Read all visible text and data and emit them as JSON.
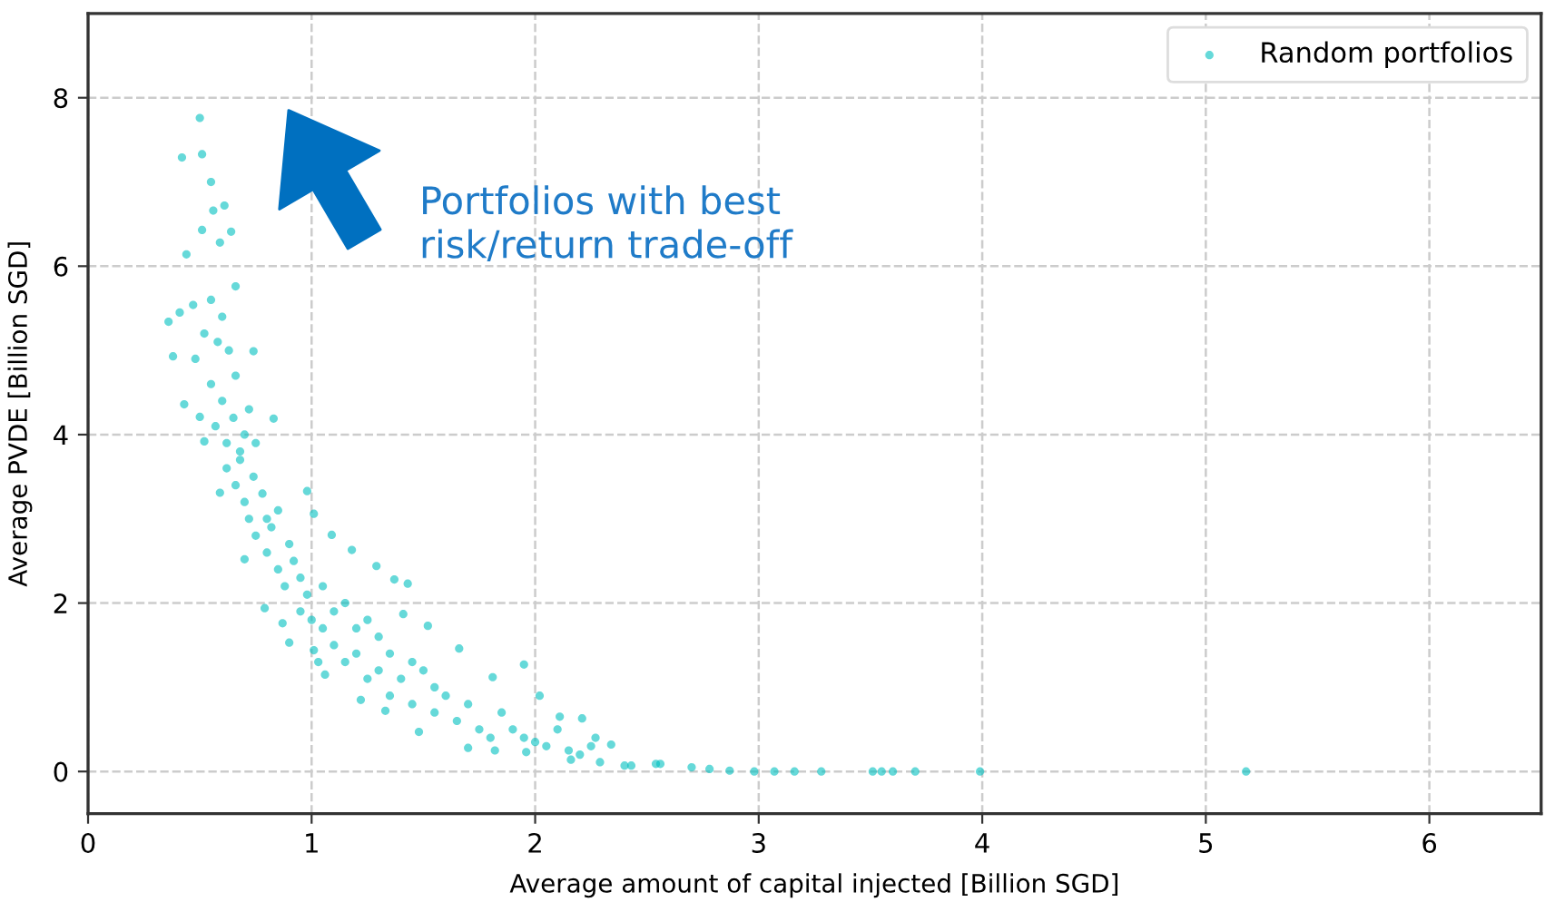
{
  "chart_data": {
    "type": "scatter",
    "xlabel": "Average amount of capital injected [Billion SGD]",
    "ylabel": "Average PVDE [Billion SGD]",
    "annotations": [
      "Portfolios with best\nrisk/return trade-off"
    ],
    "xlim": [
      0,
      6.5
    ],
    "ylim": [
      -0.5,
      9
    ],
    "xticks": [
      0,
      1,
      2,
      3,
      4,
      5,
      6
    ],
    "yticks": [
      0,
      2,
      4,
      6,
      8
    ],
    "grid": true,
    "legend": "top right",
    "marker": "circle",
    "series": [
      {
        "name": "Random portfolios",
        "color": "#00bfbf",
        "x": [
          0.36,
          0.38,
          0.41,
          0.42,
          0.43,
          0.44,
          0.47,
          0.48,
          0.5,
          0.5,
          0.51,
          0.51,
          0.52,
          0.52,
          0.55,
          0.55,
          0.55,
          0.56,
          0.57,
          0.58,
          0.59,
          0.59,
          0.6,
          0.6,
          0.61,
          0.62,
          0.62,
          0.63,
          0.64,
          0.65,
          0.66,
          0.66,
          0.66,
          0.68,
          0.68,
          0.7,
          0.7,
          0.7,
          0.72,
          0.72,
          0.74,
          0.74,
          0.75,
          0.75,
          0.78,
          0.79,
          0.8,
          0.8,
          0.82,
          0.83,
          0.85,
          0.85,
          0.87,
          0.88,
          0.9,
          0.9,
          0.92,
          0.95,
          0.95,
          0.98,
          0.98,
          1.0,
          1.01,
          1.01,
          1.03,
          1.05,
          1.05,
          1.06,
          1.09,
          1.1,
          1.1,
          1.15,
          1.15,
          1.18,
          1.2,
          1.2,
          1.22,
          1.25,
          1.25,
          1.29,
          1.3,
          1.3,
          1.33,
          1.35,
          1.35,
          1.37,
          1.41,
          1.4,
          1.43,
          1.45,
          1.45,
          1.48,
          1.5,
          1.52,
          1.55,
          1.55,
          1.6,
          1.65,
          1.66,
          1.7,
          1.7,
          1.75,
          1.8,
          1.81,
          1.82,
          1.85,
          1.9,
          1.95,
          1.95,
          1.96,
          2.0,
          2.02,
          2.05,
          2.1,
          2.11,
          2.15,
          2.16,
          2.2,
          2.21,
          2.25,
          2.27,
          2.29,
          2.34,
          2.4,
          2.43,
          2.54,
          2.56,
          2.7,
          2.78,
          2.87,
          2.98,
          3.07,
          3.16,
          3.28,
          3.51,
          3.55,
          3.6,
          3.7,
          3.99,
          5.18
        ],
        "values": [
          5.34,
          4.93,
          5.45,
          7.29,
          4.36,
          6.14,
          5.54,
          4.9,
          7.76,
          4.21,
          6.43,
          7.33,
          3.92,
          5.2,
          7.0,
          5.6,
          4.6,
          6.66,
          4.1,
          5.1,
          6.28,
          3.31,
          5.4,
          4.4,
          6.72,
          3.9,
          3.6,
          5.0,
          6.41,
          4.2,
          5.76,
          4.7,
          3.4,
          3.8,
          3.7,
          4.0,
          3.2,
          2.52,
          4.3,
          3.0,
          4.99,
          3.5,
          3.9,
          2.8,
          3.3,
          1.94,
          3.0,
          2.6,
          2.9,
          4.19,
          3.1,
          2.4,
          1.76,
          2.2,
          2.7,
          1.53,
          2.5,
          2.3,
          1.9,
          3.33,
          2.1,
          1.8,
          3.06,
          1.44,
          1.3,
          2.2,
          1.7,
          1.15,
          2.81,
          1.9,
          1.5,
          2.0,
          1.3,
          2.63,
          1.7,
          1.4,
          0.85,
          1.8,
          1.1,
          2.44,
          1.6,
          1.2,
          0.72,
          1.4,
          0.9,
          2.28,
          1.87,
          1.1,
          2.23,
          1.3,
          0.8,
          0.47,
          1.2,
          1.73,
          1.0,
          0.7,
          0.9,
          0.6,
          1.46,
          0.8,
          0.28,
          0.5,
          0.4,
          1.12,
          0.25,
          0.7,
          0.5,
          1.27,
          0.4,
          0.23,
          0.35,
          0.9,
          0.3,
          0.5,
          0.65,
          0.25,
          0.14,
          0.2,
          0.63,
          0.3,
          0.4,
          0.11,
          0.32,
          0.07,
          0.07,
          0.09,
          0.09,
          0.05,
          0.03,
          0.01,
          0.0,
          0.0,
          0.0,
          0.0,
          0.0,
          0.0,
          0.0,
          0.0,
          0.0,
          0.0
        ]
      }
    ]
  }
}
